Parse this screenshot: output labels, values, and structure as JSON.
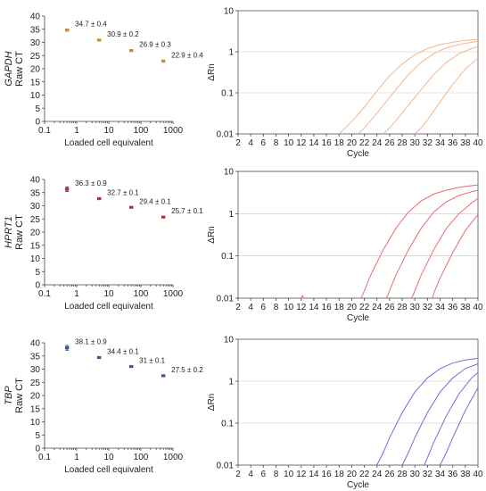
{
  "chart_data": [
    {
      "type": "scatter",
      "gene": "GAPDH",
      "ylabel": "Raw CT",
      "xlabel": "Loaded cell equivalent",
      "xscale": "log",
      "xlim": [
        0.1,
        1000
      ],
      "xticks": [
        "0.1",
        "1",
        "10",
        "100",
        "1000"
      ],
      "ylim": [
        0,
        40
      ],
      "yticks": [
        "0",
        "5",
        "10",
        "15",
        "20",
        "25",
        "30",
        "35",
        "40"
      ],
      "color": "#d58a2a",
      "x": [
        0.5,
        5,
        50,
        500
      ],
      "y": [
        34.7,
        30.9,
        26.9,
        22.9
      ],
      "err": [
        0.4,
        0.2,
        0.3,
        0.4
      ],
      "labels": [
        "34.7 ± 0.4",
        "30.9 ± 0.2",
        "26.9 ± 0.3",
        "22.9 ± 0.4"
      ]
    },
    {
      "type": "scatter",
      "gene": "HPRT1",
      "ylabel": "Raw CT",
      "xlabel": "Loaded cell equivalent",
      "xscale": "log",
      "xlim": [
        0.1,
        1000
      ],
      "xticks": [
        "0.1",
        "1",
        "10",
        "100",
        "1000"
      ],
      "ylim": [
        0,
        40
      ],
      "yticks": [
        "0",
        "5",
        "10",
        "15",
        "20",
        "25",
        "30",
        "35",
        "40"
      ],
      "color": "#c0282d",
      "x": [
        0.5,
        5,
        50,
        500
      ],
      "y": [
        36.3,
        32.7,
        29.4,
        25.7
      ],
      "err": [
        0.9,
        0.1,
        0.1,
        0.1
      ],
      "labels": [
        "36.3 ± 0.9",
        "32.7 ± 0.1",
        "29.4 ± 0.1",
        "25.7 ± 0.1"
      ]
    },
    {
      "type": "scatter",
      "gene": "TBP",
      "ylabel": "Raw CT",
      "xlabel": "Loaded cell equivalent",
      "xscale": "log",
      "xlim": [
        0.1,
        1000
      ],
      "xticks": [
        "0.1",
        "1",
        "10",
        "100",
        "1000"
      ],
      "ylim": [
        0,
        40
      ],
      "yticks": [
        "0",
        "5",
        "10",
        "15",
        "20",
        "25",
        "30",
        "35",
        "40"
      ],
      "color": "#2f56a8",
      "x": [
        0.5,
        5,
        50,
        500
      ],
      "y": [
        38.1,
        34.4,
        31.0,
        27.5
      ],
      "err": [
        0.9,
        0.1,
        0.1,
        0.2
      ],
      "labels": [
        "38.1 ± 0.9",
        "34.4 ± 0.1",
        "31 ± 0.1",
        "27.5 ± 0.2"
      ]
    },
    {
      "type": "line",
      "ylabel": "ΔRn",
      "xlabel": "Cycle",
      "xlim": [
        2,
        40
      ],
      "xticks": [
        "2",
        "4",
        "6",
        "8",
        "10",
        "12",
        "14",
        "16",
        "18",
        "20",
        "22",
        "24",
        "26",
        "28",
        "30",
        "32",
        "34",
        "36",
        "38",
        "40"
      ],
      "yscale": "log",
      "ylim": [
        0.01,
        10
      ],
      "yticks": [
        "0.01",
        "0.1",
        "1",
        "10"
      ],
      "grid": "horizontal",
      "color": "#f5b58a",
      "series": [
        {
          "x": [
            18,
            19,
            20,
            22,
            24,
            26,
            28,
            30,
            32,
            34,
            36,
            38,
            40
          ],
          "y": [
            0.01,
            0.014,
            0.02,
            0.045,
            0.11,
            0.26,
            0.5,
            0.85,
            1.2,
            1.5,
            1.7,
            1.9,
            2.0
          ]
        },
        {
          "x": [
            21,
            22,
            23,
            25,
            27,
            29,
            31,
            33,
            35,
            37,
            39,
            40
          ],
          "y": [
            0.01,
            0.014,
            0.021,
            0.05,
            0.12,
            0.28,
            0.55,
            0.9,
            1.25,
            1.5,
            1.7,
            1.8
          ]
        },
        {
          "x": [
            25,
            26,
            27,
            29,
            31,
            33,
            35,
            37,
            39,
            40
          ],
          "y": [
            0.01,
            0.014,
            0.021,
            0.05,
            0.12,
            0.28,
            0.55,
            0.9,
            1.2,
            1.35
          ]
        },
        {
          "x": [
            30,
            31,
            32,
            34,
            36,
            38,
            40
          ],
          "y": [
            0.01,
            0.014,
            0.022,
            0.06,
            0.16,
            0.38,
            0.7
          ]
        }
      ]
    },
    {
      "type": "line",
      "ylabel": "ΔRn",
      "xlabel": "Cycle",
      "xlim": [
        2,
        40
      ],
      "xticks": [
        "2",
        "4",
        "6",
        "8",
        "10",
        "12",
        "14",
        "16",
        "18",
        "20",
        "22",
        "24",
        "26",
        "28",
        "30",
        "32",
        "34",
        "36",
        "38",
        "40"
      ],
      "yscale": "log",
      "ylim": [
        0.01,
        10
      ],
      "yticks": [
        "0.01",
        "0.1",
        "1",
        "10"
      ],
      "grid": "horizontal",
      "color": "#ea6b6b",
      "series": [
        {
          "x": [
            21.5,
            22,
            23,
            25,
            27,
            29,
            31,
            33,
            35,
            37,
            39,
            40
          ],
          "y": [
            0.01,
            0.015,
            0.035,
            0.14,
            0.45,
            1.1,
            2.0,
            2.9,
            3.6,
            4.2,
            4.6,
            4.8
          ]
        },
        {
          "x": [
            25.5,
            26,
            27,
            29,
            31,
            33,
            35,
            37,
            39,
            40
          ],
          "y": [
            0.01,
            0.015,
            0.035,
            0.14,
            0.45,
            1.1,
            1.9,
            2.7,
            3.3,
            3.6
          ]
        },
        {
          "x": [
            29.5,
            30,
            31,
            33,
            35,
            37,
            39,
            40
          ],
          "y": [
            0.01,
            0.015,
            0.035,
            0.14,
            0.45,
            1.0,
            1.8,
            2.3
          ]
        },
        {
          "x": [
            32.8,
            33,
            34,
            36,
            38,
            40
          ],
          "y": [
            0.01,
            0.013,
            0.03,
            0.12,
            0.4,
            0.95
          ]
        },
        {
          "x": [
            12,
            12.2,
            12.4
          ],
          "y": [
            0.01,
            0.0115,
            0.01
          ]
        }
      ]
    },
    {
      "type": "line",
      "ylabel": "ΔRn",
      "xlabel": "Cycle",
      "xlim": [
        2,
        40
      ],
      "xticks": [
        "2",
        "4",
        "6",
        "8",
        "10",
        "12",
        "14",
        "16",
        "18",
        "20",
        "22",
        "24",
        "26",
        "28",
        "30",
        "32",
        "34",
        "36",
        "38",
        "40"
      ],
      "yscale": "log",
      "ylim": [
        0.01,
        10
      ],
      "yticks": [
        "0.01",
        "0.1",
        "1",
        "10"
      ],
      "grid": "horizontal",
      "color": "#6d6de3",
      "series": [
        {
          "x": [
            24,
            25,
            26,
            28,
            30,
            32,
            34,
            36,
            38,
            40
          ],
          "y": [
            0.01,
            0.02,
            0.045,
            0.18,
            0.55,
            1.2,
            2.0,
            2.7,
            3.2,
            3.5
          ]
        },
        {
          "x": [
            28,
            29,
            30,
            32,
            34,
            36,
            38,
            40
          ],
          "y": [
            0.01,
            0.02,
            0.045,
            0.18,
            0.55,
            1.2,
            2.0,
            2.6
          ]
        },
        {
          "x": [
            31.5,
            32,
            33,
            35,
            37,
            39,
            40
          ],
          "y": [
            0.01,
            0.015,
            0.035,
            0.15,
            0.5,
            1.2,
            1.6
          ]
        },
        {
          "x": [
            34,
            35,
            36,
            38,
            40
          ],
          "y": [
            0.01,
            0.02,
            0.045,
            0.2,
            0.7
          ]
        }
      ]
    }
  ]
}
